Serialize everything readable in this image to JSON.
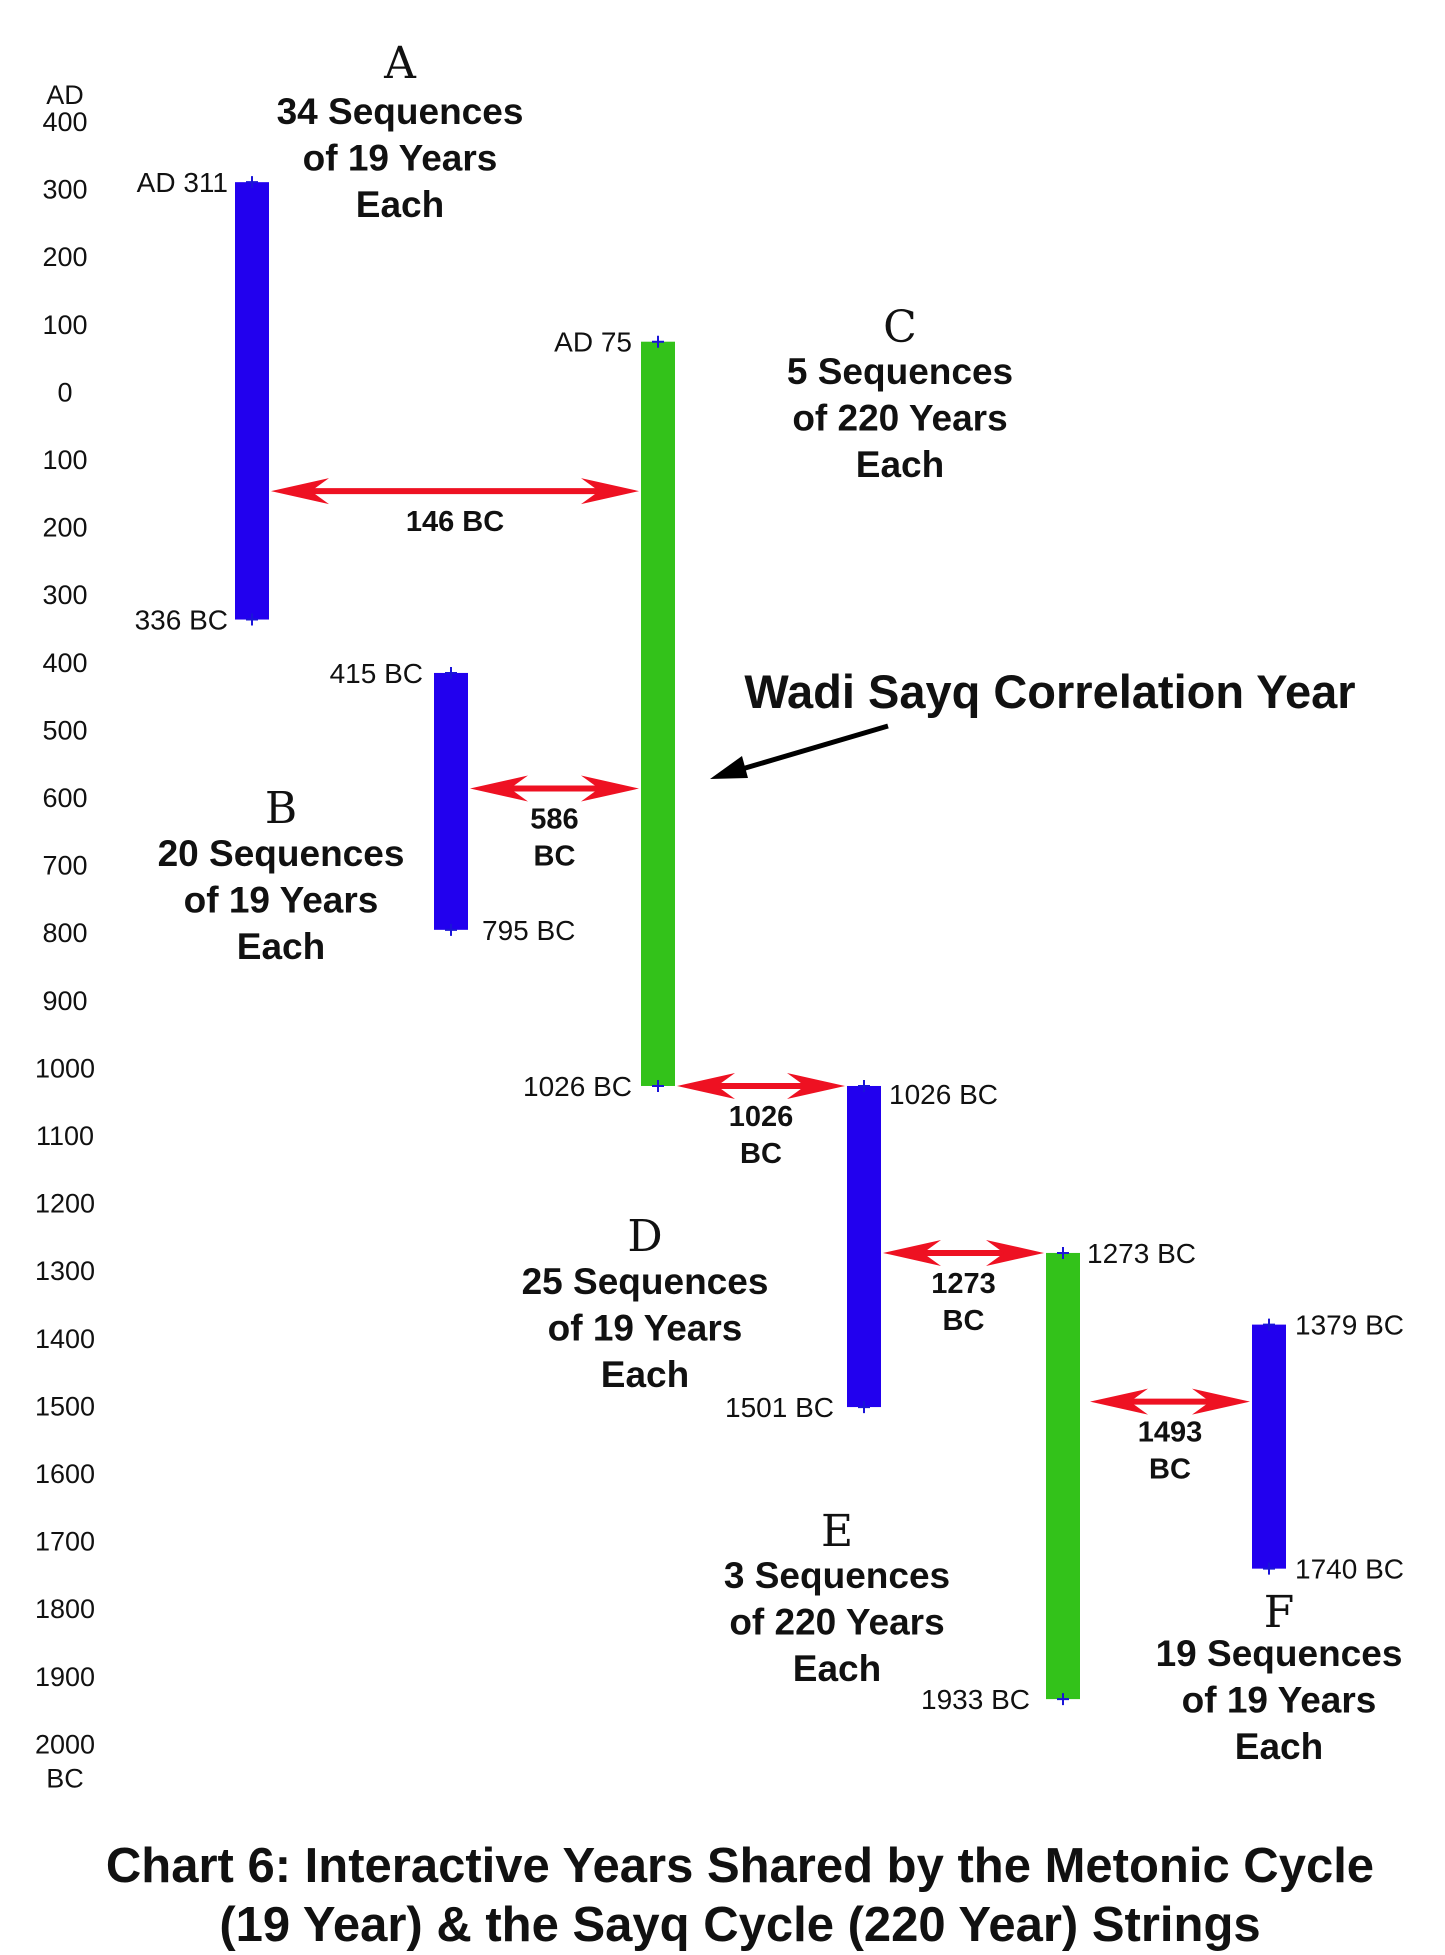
{
  "chart_data": {
    "type": "bar",
    "title": [
      "Chart 6: Interactive Years Shared by the Metonic Cycle",
      "(19 Year) & the Sayq Cycle (220 Year) Strings"
    ],
    "yaxis": {
      "top_label": "AD",
      "bottom_label": "BC",
      "range": [
        400,
        -2000
      ],
      "ticks": [
        400,
        300,
        200,
        100,
        0,
        -100,
        -200,
        -300,
        -400,
        -500,
        -600,
        -700,
        -800,
        -900,
        -1000,
        -1100,
        -1200,
        -1300,
        -1400,
        -1500,
        -1600,
        -1700,
        -1800,
        -1900,
        -2000
      ],
      "tick_labels": [
        "400",
        "300",
        "200",
        "100",
        "0",
        "100",
        "200",
        "300",
        "400",
        "500",
        "600",
        "700",
        "800",
        "900",
        "1000",
        "1100",
        "1200",
        "1300",
        "1400",
        "1500",
        "1600",
        "1700",
        "1800",
        "1900",
        "2000"
      ]
    },
    "colors": {
      "metonic": "#2200ee",
      "sayq": "#33c21a",
      "arrow": "#ee1122"
    },
    "bars": [
      {
        "id": "A",
        "letter": "A",
        "cycle": "metonic",
        "start": 311,
        "end": -336,
        "start_label": "AD 311",
        "end_label": "336 BC",
        "desc": [
          "34 Sequences",
          "of 19 Years",
          "Each"
        ]
      },
      {
        "id": "B",
        "letter": "B",
        "cycle": "metonic",
        "start": -415,
        "end": -795,
        "start_label": "415 BC",
        "end_label": "795 BC",
        "desc": [
          "20 Sequences",
          "of 19 Years",
          "Each"
        ]
      },
      {
        "id": "C",
        "letter": "C",
        "cycle": "sayq",
        "start": 75,
        "end": -1026,
        "start_label": "AD 75",
        "end_label": "1026 BC",
        "desc": [
          "5 Sequences",
          "of 220 Years",
          "Each"
        ]
      },
      {
        "id": "D",
        "letter": "D",
        "cycle": "metonic",
        "start": -1026,
        "end": -1501,
        "start_label": "1026 BC",
        "end_label": "1501 BC",
        "desc": [
          "25 Sequences",
          "of 19 Years",
          "Each"
        ]
      },
      {
        "id": "E",
        "letter": "E",
        "cycle": "sayq",
        "start": -1273,
        "end": -1933,
        "start_label": "1273 BC",
        "end_label": "1933 BC",
        "desc": [
          "3 Sequences",
          "of 220 Years",
          "Each"
        ]
      },
      {
        "id": "F",
        "letter": "F",
        "cycle": "metonic",
        "start": -1379,
        "end": -1740,
        "start_label": "1379 BC",
        "end_label": "1740 BC",
        "desc": [
          "19 Sequences",
          "of 19 Years",
          "Each"
        ]
      }
    ],
    "links": [
      {
        "from": "A",
        "to": "C",
        "year": -146,
        "label": [
          "146 BC"
        ]
      },
      {
        "from": "B",
        "to": "C",
        "year": -586,
        "label": [
          "586",
          "BC"
        ]
      },
      {
        "from": "C",
        "to": "D",
        "year": -1026,
        "label": [
          "1026",
          "BC"
        ]
      },
      {
        "from": "D",
        "to": "E",
        "year": -1273,
        "label": [
          "1273",
          "BC"
        ]
      },
      {
        "from": "E",
        "to": "F",
        "year": -1493,
        "label": [
          "1493",
          "BC"
        ]
      }
    ],
    "annotation": {
      "text": "Wadi Sayq Correlation Year",
      "points_to": "C",
      "year": -586
    }
  }
}
